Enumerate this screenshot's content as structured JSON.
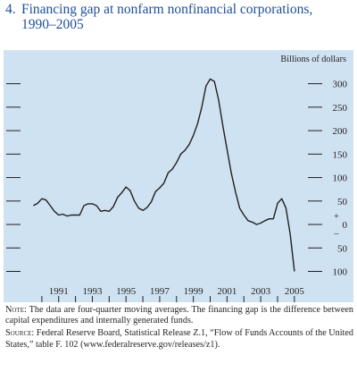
{
  "figure": {
    "number": "4.",
    "title_line1": "Financing gap at nonfarm nonfinancial corporations,",
    "title_line2": "1990–2005"
  },
  "notes": {
    "note_label": "Note:",
    "note_text": "The data are four-quarter moving averages. The financing gap is the difference between capital expenditures and internally generated funds.",
    "source_label": "Source:",
    "source_text": "Federal Reserve Board, Statistical Release Z.1, “Flow of Funds Accounts of the United States,” table F. 102 (www.federalreserve.gov/releases/z1)."
  },
  "colors": {
    "panel": "#cfe2f2",
    "line": "#231f20",
    "title": "#1f4e9c"
  },
  "chart_data": {
    "type": "line",
    "title": "Financing gap at nonfarm nonfinancial corporations, 1990–2005",
    "unit_label": "Billions of dollars",
    "xlim": [
      1989.5,
      2006.25
    ],
    "ylim": [
      -120,
      345
    ],
    "x_tick_labels": [
      "1991",
      "1993",
      "1995",
      "1997",
      "1999",
      "2001",
      "2003",
      "2005"
    ],
    "x_tick_values": [
      1991,
      1993,
      1995,
      1997,
      1999,
      2001,
      2003,
      2005
    ],
    "y_tick_labels": [
      {
        "value": 300,
        "label": "300"
      },
      {
        "value": 250,
        "label": "250"
      },
      {
        "value": 200,
        "label": "200"
      },
      {
        "value": 150,
        "label": "150"
      },
      {
        "value": 100,
        "label": "100"
      },
      {
        "value": 50,
        "label": "50"
      },
      {
        "value": 0,
        "label": "0"
      },
      {
        "value": -50,
        "label": "50"
      },
      {
        "value": -100,
        "label": "100"
      }
    ],
    "zero_markers": {
      "plus": "+",
      "minus": "_"
    },
    "grid": false,
    "series": [
      {
        "x": [
          1990.0,
          1990.25,
          1990.5,
          1990.75,
          1991.0,
          1991.25,
          1991.5,
          1991.75,
          1992.0,
          1992.25,
          1992.5,
          1992.75,
          1993.0,
          1993.25,
          1993.5,
          1993.75,
          1994.0,
          1994.25,
          1994.5,
          1994.75,
          1995.0,
          1995.25,
          1995.5,
          1995.75,
          1996.0,
          1996.25,
          1996.5,
          1996.75,
          1997.0,
          1997.25,
          1997.5,
          1997.75,
          1998.0,
          1998.25,
          1998.5,
          1998.75,
          1999.0,
          1999.25,
          1999.5,
          1999.75,
          2000.0,
          2000.25,
          2000.5,
          2000.75,
          2001.0,
          2001.25,
          2001.5,
          2001.75,
          2002.0,
          2002.25,
          2002.5,
          2002.75,
          2003.0,
          2003.25,
          2003.5,
          2003.75,
          2004.0,
          2004.25,
          2004.5,
          2004.75,
          2005.0,
          2005.25,
          2005.5
        ],
        "y": [
          40,
          45,
          55,
          52,
          40,
          28,
          20,
          22,
          18,
          20,
          20,
          20,
          40,
          44,
          44,
          40,
          28,
          30,
          28,
          38,
          58,
          68,
          80,
          72,
          50,
          35,
          30,
          36,
          48,
          70,
          78,
          88,
          110,
          118,
          132,
          150,
          158,
          170,
          190,
          215,
          250,
          295,
          310,
          305,
          265,
          210,
          160,
          110,
          70,
          35,
          20,
          8,
          5,
          0,
          3,
          8,
          12,
          12,
          45,
          55,
          35,
          -20,
          -100
        ]
      }
    ]
  }
}
